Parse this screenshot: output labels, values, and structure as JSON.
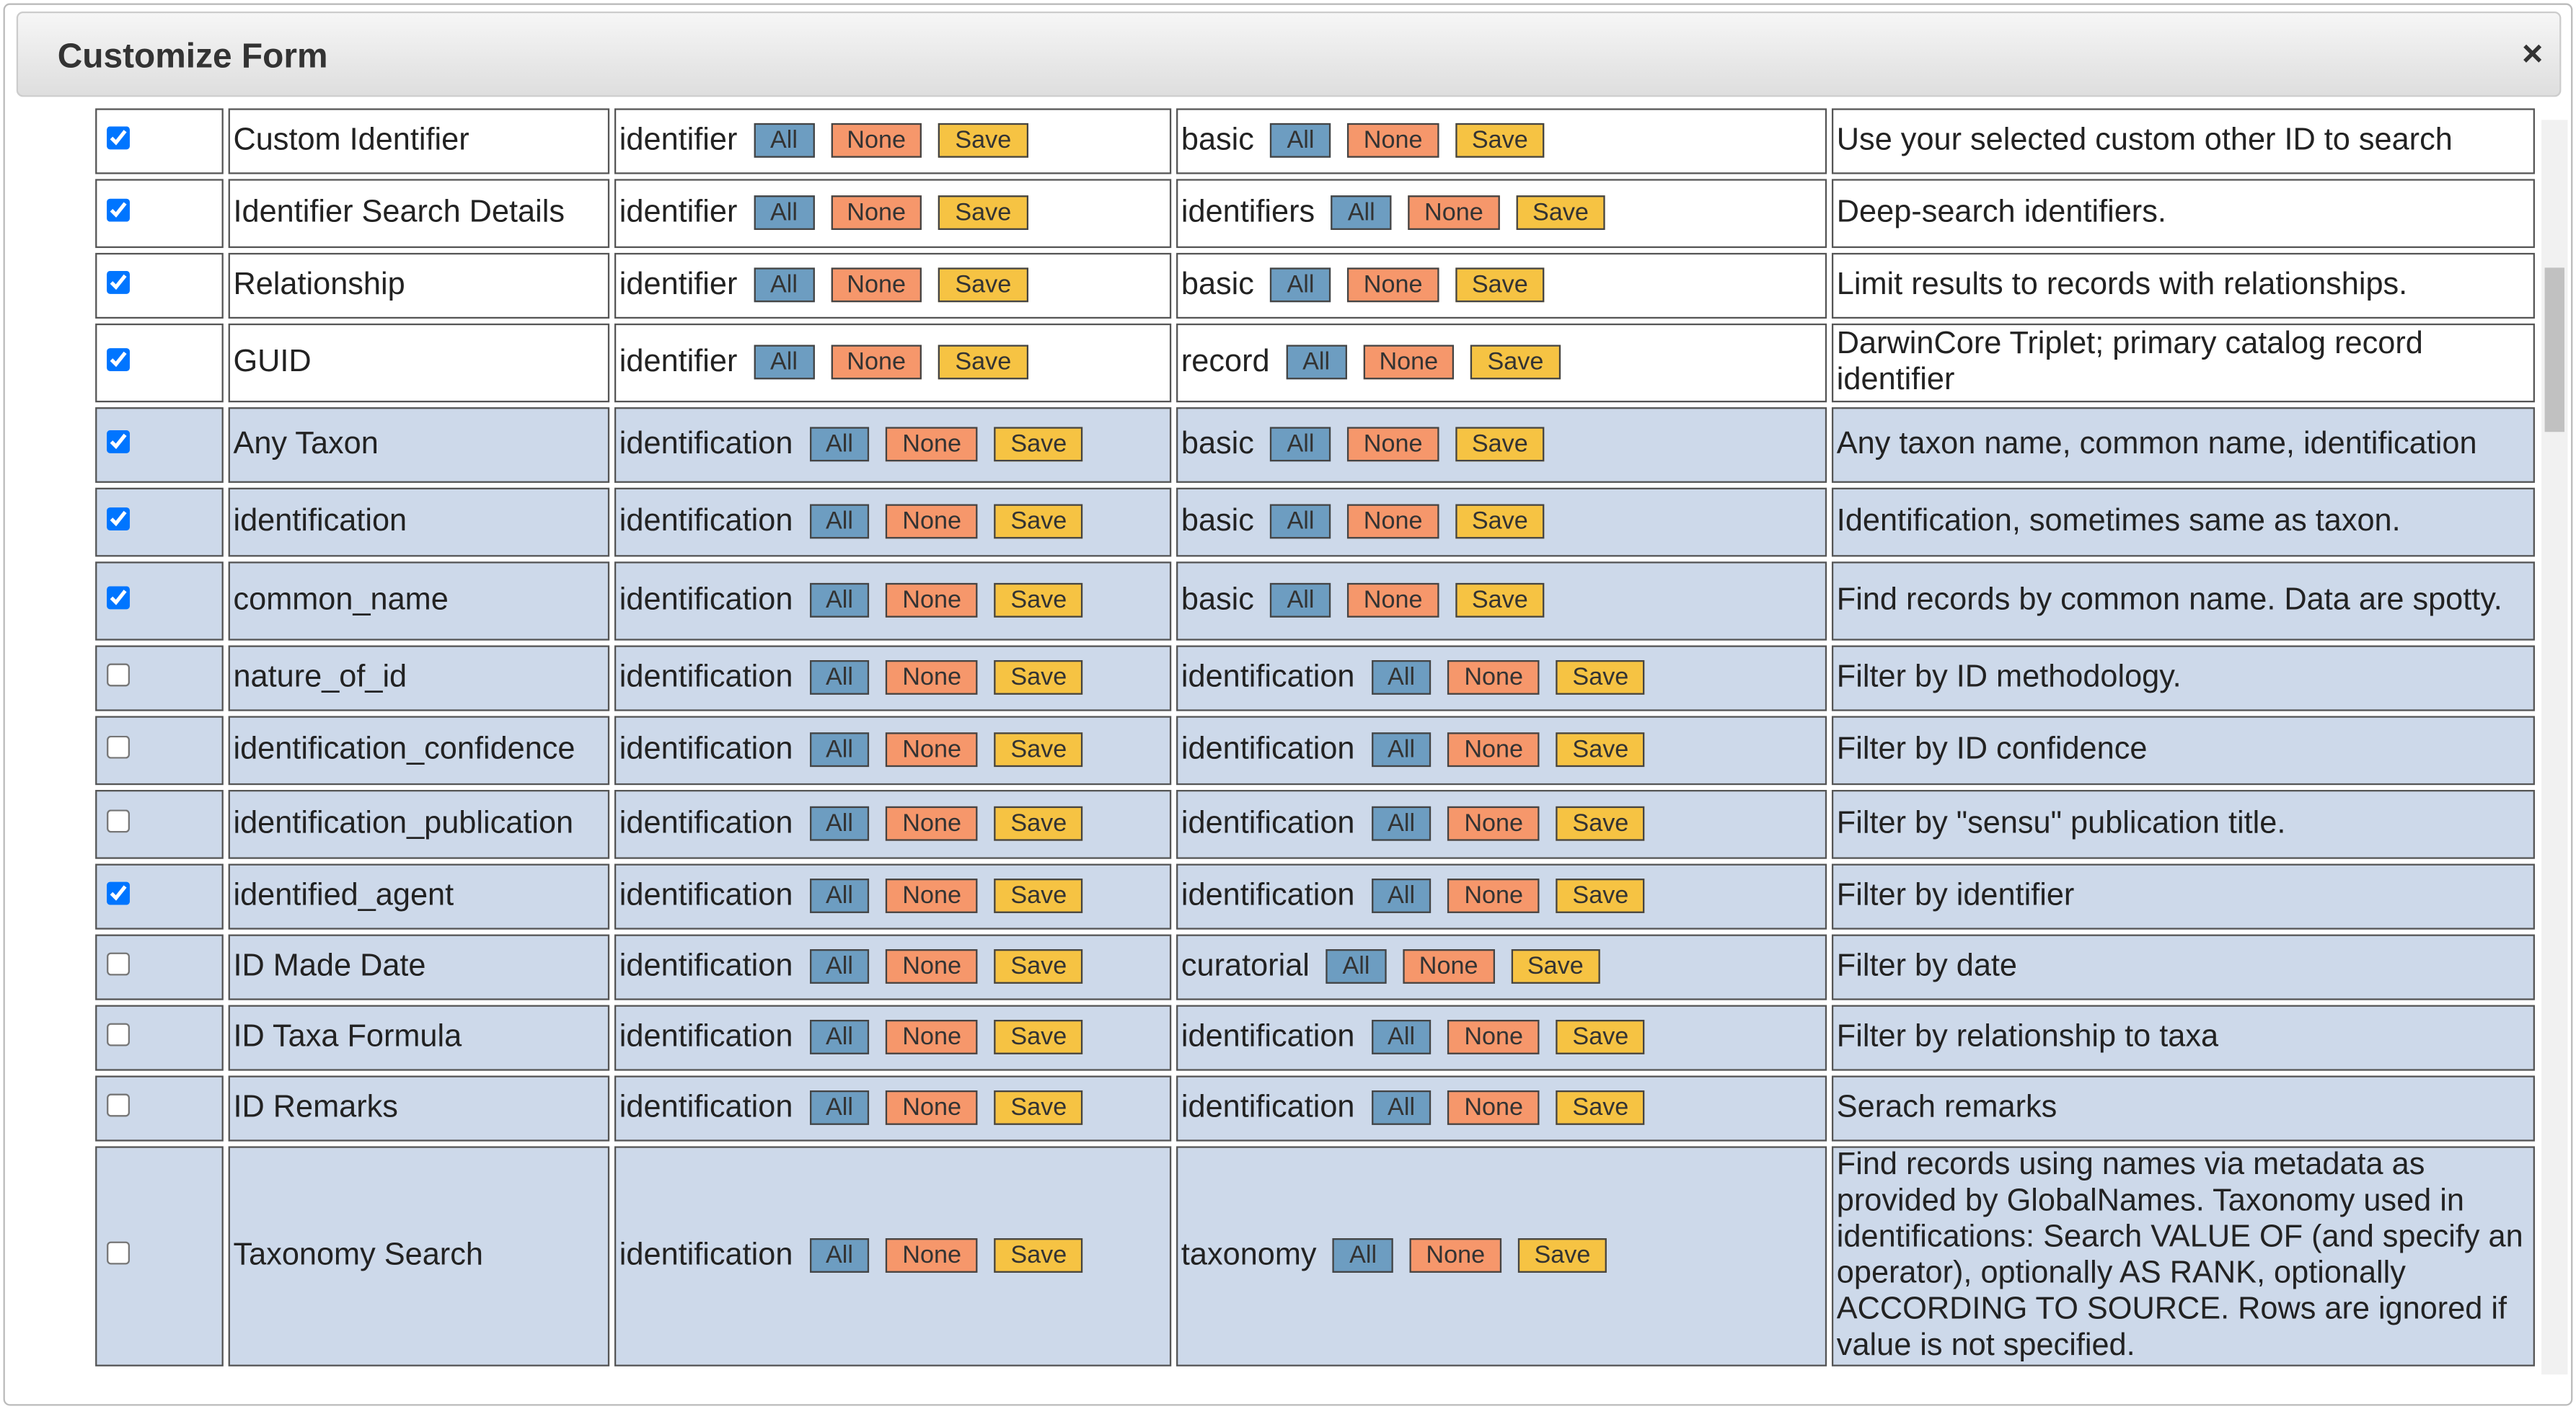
{
  "header": {
    "title": "Customize Form",
    "close": "×"
  },
  "buttons": [
    "All",
    "None",
    "Save"
  ],
  "rows": [
    {
      "checked": true,
      "label": "Custom Identifier",
      "group": "identifier",
      "category": "basic",
      "description": "Use your selected custom other ID to search"
    },
    {
      "checked": true,
      "label": "Identifier Search Details",
      "group": "identifier",
      "category": "identifiers",
      "description": "Deep-search identifiers."
    },
    {
      "checked": true,
      "label": "Relationship",
      "group": "identifier",
      "category": "basic",
      "description": "Limit results to records with relationships."
    },
    {
      "checked": true,
      "label": "GUID",
      "group": "identifier",
      "category": "record",
      "description": "DarwinCore Triplet; primary catalog record identifier"
    },
    {
      "checked": true,
      "label": "Any Taxon",
      "group": "identification",
      "category": "basic",
      "description": "Any taxon name, common name, identification"
    },
    {
      "checked": true,
      "label": "identification",
      "group": "identification",
      "category": "basic",
      "description": "Identification, sometimes same as taxon."
    },
    {
      "checked": true,
      "label": "common_name",
      "group": "identification",
      "category": "basic",
      "description": "Find records by common name. Data are spotty."
    },
    {
      "checked": false,
      "label": "nature_of_id",
      "group": "identification",
      "category": "identification",
      "description": "Filter by ID methodology."
    },
    {
      "checked": false,
      "label": "identification_confidence",
      "group": "identification",
      "category": "identification",
      "description": "Filter by ID confidence"
    },
    {
      "checked": false,
      "label": "identification_publication",
      "group": "identification",
      "category": "identification",
      "description": "Filter by \"sensu\" publication title."
    },
    {
      "checked": true,
      "label": "identified_agent",
      "group": "identification",
      "category": "identification",
      "description": "Filter by identifier"
    },
    {
      "checked": false,
      "label": "ID Made Date",
      "group": "identification",
      "category": "curatorial",
      "description": "Filter by date"
    },
    {
      "checked": false,
      "label": "ID Taxa Formula",
      "group": "identification",
      "category": "identification",
      "description": "Filter by relationship to taxa"
    },
    {
      "checked": false,
      "label": "ID Remarks",
      "group": "identification",
      "category": "identification",
      "description": "Serach remarks"
    },
    {
      "checked": false,
      "label": "Taxonomy Search",
      "group": "identification",
      "category": "taxonomy",
      "description": "Find records using names via metadata as provided by GlobalNames. Taxonomy used in identifications: Search VALUE OF (and specify an operator), optionally AS RANK, optionally ACCORDING TO SOURCE. Rows are ignored if value is not specified."
    }
  ]
}
